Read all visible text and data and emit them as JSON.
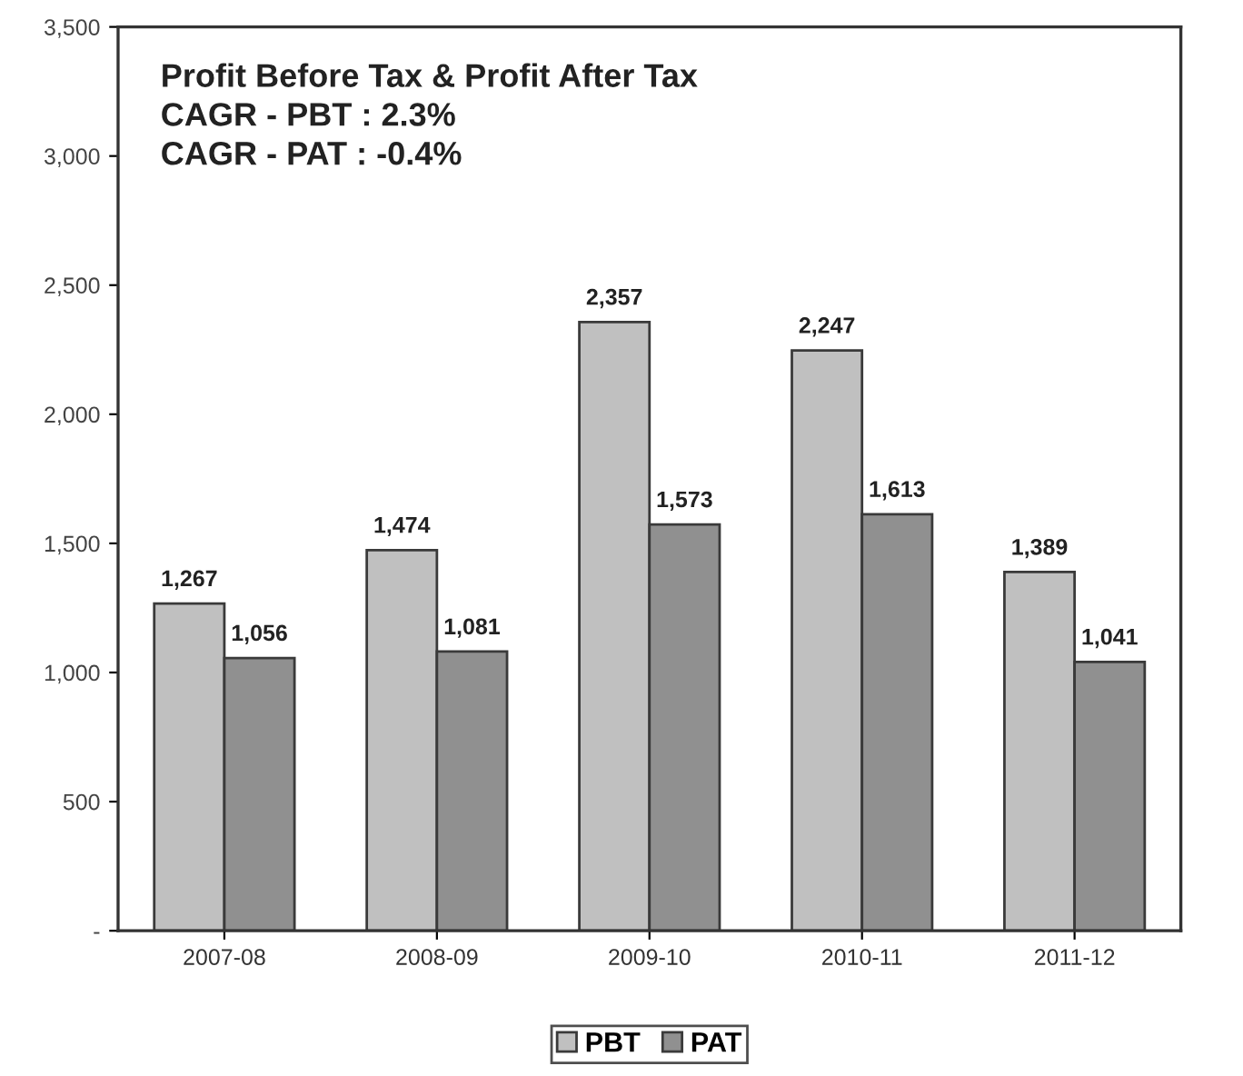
{
  "chart_data": {
    "type": "bar",
    "title": "Profit Before Tax & Profit After Tax",
    "annotations": [
      "CAGR - PBT : 2.3%",
      "CAGR - PAT : -0.4%"
    ],
    "categories": [
      "2007-08",
      "2008-09",
      "2009-10",
      "2010-11",
      "2011-12"
    ],
    "series": [
      {
        "name": "PBT",
        "color": "#c0c0c0",
        "values": [
          1267,
          1474,
          2357,
          2247,
          1389
        ],
        "value_labels": [
          "1,267",
          "1,474",
          "2,357",
          "2,247",
          "1,389"
        ]
      },
      {
        "name": "PAT",
        "color": "#909090",
        "values": [
          1056,
          1081,
          1573,
          1613,
          1041
        ],
        "value_labels": [
          "1,056",
          "1,081",
          "1,573",
          "1,613",
          "1,041"
        ]
      }
    ],
    "ylim": [
      0,
      3500
    ],
    "yticks": [
      {
        "value": 0,
        "label": "-"
      },
      {
        "value": 500,
        "label": "500"
      },
      {
        "value": 1000,
        "label": "1,000"
      },
      {
        "value": 1500,
        "label": "1,500"
      },
      {
        "value": 2000,
        "label": "2,000"
      },
      {
        "value": 2500,
        "label": "2,500"
      },
      {
        "value": 3000,
        "label": "3,000"
      },
      {
        "value": 3500,
        "label": "3,500"
      }
    ],
    "grid": false,
    "legend": "bottom"
  }
}
